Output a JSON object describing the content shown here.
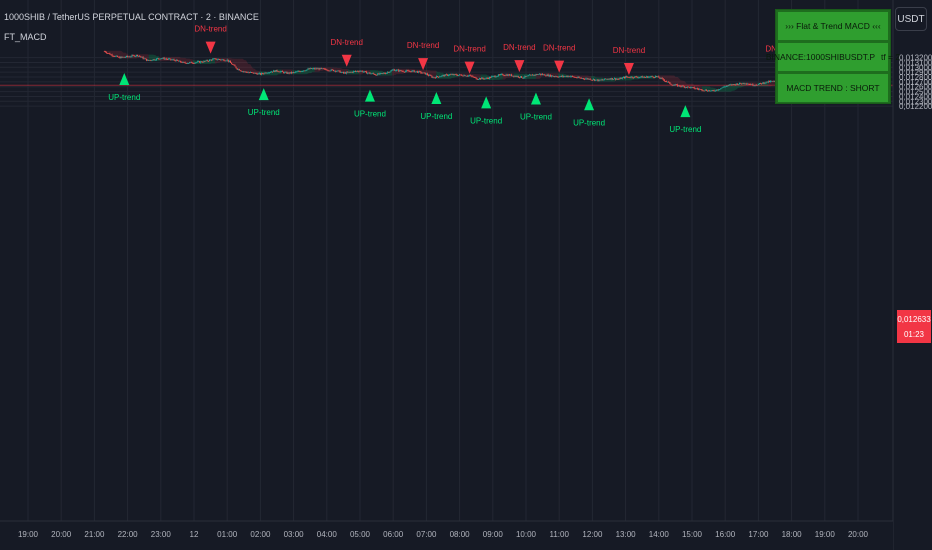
{
  "header": {
    "symbol_line": "1000SHIB / TetherUS PERPETUAL CONTRACT · 2 · BINANCE",
    "indicator": "FT_MACD",
    "currency_button": "USDT"
  },
  "info_panel": {
    "title": "›››  Flat & Trend MACD  ‹‹‹",
    "symbol": "BINANCE:1000SHIBUSDT.P",
    "timeframe": "tf = 2",
    "status": "MACD TREND : SHORT"
  },
  "last_price": {
    "price": "0,012633",
    "countdown": "01:23",
    "value": 0.012633
  },
  "colors": {
    "up": "#00e676",
    "down": "#f23645",
    "background": "#161a25",
    "grid": "#232733",
    "panel": "#2f9e2f"
  },
  "chart_data": {
    "type": "candlestick",
    "ylim": [
      0.01222,
      0.01326
    ],
    "y_ticks": [
      "0,013200",
      "0,013100",
      "0,013000",
      "0,012900",
      "0,012800",
      "0,012700",
      "0,012600",
      "0,012500",
      "0,012400",
      "0,012300",
      "0,012200"
    ],
    "x_ticks": [
      "19:00",
      "20:00",
      "21:00",
      "22:00",
      "23:00",
      "12",
      "01:00",
      "02:00",
      "03:00",
      "04:00",
      "05:00",
      "06:00",
      "07:00",
      "08:00",
      "09:00",
      "10:00",
      "11:00",
      "12:00",
      "13:00",
      "14:00",
      "15:00",
      "16:00",
      "17:00",
      "18:00",
      "19:00",
      "20:00"
    ],
    "price_path": [
      [
        21.3,
        0.01333
      ],
      [
        21.5,
        0.01326
      ],
      [
        21.75,
        0.0132
      ],
      [
        22.0,
        0.01322
      ],
      [
        22.3,
        0.01325
      ],
      [
        22.6,
        0.01314
      ],
      [
        23.0,
        0.01319
      ],
      [
        23.4,
        0.01315
      ],
      [
        23.7,
        0.01309
      ],
      [
        24.0,
        0.0131
      ],
      [
        24.3,
        0.01312
      ],
      [
        24.6,
        0.01317
      ],
      [
        25.0,
        0.01315
      ],
      [
        25.3,
        0.01297
      ],
      [
        25.5,
        0.01291
      ],
      [
        25.8,
        0.01288
      ],
      [
        26.0,
        0.01286
      ],
      [
        26.2,
        0.0129
      ],
      [
        26.5,
        0.01293
      ],
      [
        26.8,
        0.01288
      ],
      [
        27.0,
        0.01289
      ],
      [
        27.3,
        0.01294
      ],
      [
        27.5,
        0.01297
      ],
      [
        27.8,
        0.01297
      ],
      [
        28.0,
        0.01295
      ],
      [
        28.3,
        0.01293
      ],
      [
        28.5,
        0.01288
      ],
      [
        28.8,
        0.01291
      ],
      [
        29.0,
        0.01293
      ],
      [
        29.2,
        0.01289
      ],
      [
        29.5,
        0.01285
      ],
      [
        29.8,
        0.01289
      ],
      [
        30.0,
        0.01295
      ],
      [
        30.3,
        0.01292
      ],
      [
        30.6,
        0.01292
      ],
      [
        30.8,
        0.0129
      ],
      [
        31.0,
        0.01286
      ],
      [
        31.2,
        0.01279
      ],
      [
        31.5,
        0.01283
      ],
      [
        31.7,
        0.01285
      ],
      [
        32.0,
        0.01284
      ],
      [
        32.3,
        0.01283
      ],
      [
        32.5,
        0.01277
      ],
      [
        32.8,
        0.01277
      ],
      [
        33.0,
        0.01281
      ],
      [
        33.3,
        0.01285
      ],
      [
        33.5,
        0.01284
      ],
      [
        33.7,
        0.01282
      ],
      [
        33.9,
        0.01279
      ],
      [
        34.1,
        0.01283
      ],
      [
        34.4,
        0.01286
      ],
      [
        34.7,
        0.01283
      ],
      [
        35.0,
        0.01281
      ],
      [
        35.3,
        0.01282
      ],
      [
        35.6,
        0.01278
      ],
      [
        35.9,
        0.01276
      ],
      [
        36.2,
        0.01273
      ],
      [
        36.5,
        0.01277
      ],
      [
        36.8,
        0.01276
      ],
      [
        37.0,
        0.0128
      ],
      [
        37.3,
        0.0128
      ],
      [
        37.6,
        0.0128
      ],
      [
        37.9,
        0.01281
      ],
      [
        38.0,
        0.01279
      ],
      [
        38.2,
        0.01272
      ],
      [
        38.4,
        0.01264
      ],
      [
        38.6,
        0.01262
      ],
      [
        38.8,
        0.0126
      ],
      [
        39.0,
        0.01258
      ],
      [
        39.2,
        0.01255
      ],
      [
        39.4,
        0.01253
      ],
      [
        39.6,
        0.01251
      ],
      [
        39.8,
        0.01255
      ],
      [
        40.0,
        0.01261
      ],
      [
        40.2,
        0.01264
      ],
      [
        40.4,
        0.01266
      ],
      [
        40.6,
        0.01268
      ],
      [
        40.8,
        0.01264
      ],
      [
        41.0,
        0.01265
      ],
      [
        41.2,
        0.01269
      ],
      [
        41.4,
        0.01271
      ],
      [
        41.7,
        0.0127
      ],
      [
        42.0,
        0.01274
      ],
      [
        42.2,
        0.01275
      ],
      [
        42.4,
        0.01277
      ],
      [
        42.6,
        0.01278
      ],
      [
        42.8,
        0.01277
      ],
      [
        43.0,
        0.01279
      ],
      [
        43.2,
        0.01276
      ],
      [
        43.4,
        0.01268
      ],
      [
        43.45,
        0.012633
      ]
    ],
    "signals": [
      {
        "type": "up",
        "label": "UP-trend",
        "x": 21.9,
        "y": 0.01317
      },
      {
        "type": "down",
        "label": "DN-trend",
        "x": 24.5,
        "y": 0.01324
      },
      {
        "type": "up",
        "label": "UP-trend",
        "x": 26.1,
        "y": 0.01286
      },
      {
        "type": "down",
        "label": "DN-trend",
        "x": 28.6,
        "y": 0.01297
      },
      {
        "type": "up",
        "label": "UP-trend",
        "x": 29.3,
        "y": 0.01283
      },
      {
        "type": "down",
        "label": "DN-trend",
        "x": 30.9,
        "y": 0.0129
      },
      {
        "type": "up",
        "label": "UP-trend",
        "x": 31.3,
        "y": 0.01278
      },
      {
        "type": "down",
        "label": "DN-trend",
        "x": 32.3,
        "y": 0.01283
      },
      {
        "type": "up",
        "label": "UP-trend",
        "x": 32.8,
        "y": 0.01269
      },
      {
        "type": "down",
        "label": "DN-trend",
        "x": 33.8,
        "y": 0.01286
      },
      {
        "type": "up",
        "label": "UP-trend",
        "x": 34.3,
        "y": 0.01277
      },
      {
        "type": "down",
        "label": "DN-trend",
        "x": 35.0,
        "y": 0.01285
      },
      {
        "type": "up",
        "label": "UP-trend",
        "x": 35.9,
        "y": 0.01265
      },
      {
        "type": "down",
        "label": "DN-trend",
        "x": 37.1,
        "y": 0.0128
      },
      {
        "type": "up",
        "label": "UP-trend",
        "x": 38.8,
        "y": 0.01251
      },
      {
        "type": "down",
        "label": "DN-trend",
        "x": 41.7,
        "y": 0.01283
      }
    ]
  }
}
